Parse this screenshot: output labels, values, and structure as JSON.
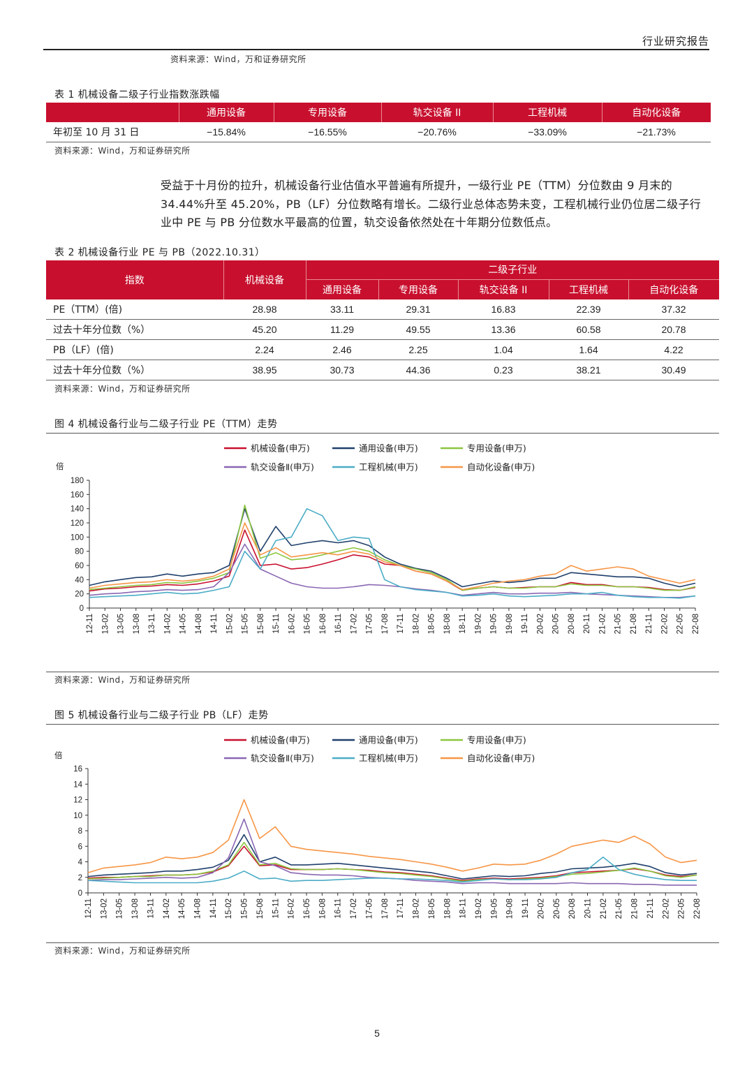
{
  "header": {
    "title": "行业研究报告"
  },
  "source_top": "资料来源：Wind，万和证券研究所",
  "table1": {
    "caption": "表 1    机械设备二级子行业指数涨跌幅",
    "headers": [
      "",
      "通用设备",
      "专用设备",
      "轨交设备 II",
      "工程机械",
      "自动化设备"
    ],
    "rows": [
      [
        "年初至 10 月 31 日",
        "−15.84%",
        "−16.55%",
        "−20.76%",
        "−33.09%",
        "−21.73%"
      ]
    ],
    "source": "资料来源：Wind，万和证券研究所"
  },
  "paragraph": "受益于十月份的拉升，机械设备行业估值水平普遍有所提升，一级行业 PE（TTM）分位数由 9 月末的 34.44%升至 45.20%，PB（LF）分位数略有增长。二级行业总体态势未变，工程机械行业仍位居二级子行业中 PE 与 PB 分位数水平最高的位置，轨交设备依然处在十年期分位数低点。",
  "table2": {
    "caption": "表 2    机械设备行业 PE 与 PB（2022.10.31）",
    "head_index": "指数",
    "head_main": "机械设备",
    "head_group": "二级子行业",
    "sub_headers": [
      "通用设备",
      "专用设备",
      "轨交设备 II",
      "工程机械",
      "自动化设备"
    ],
    "rows": [
      [
        "PE（TTM）(倍)",
        "28.98",
        "33.11",
        "29.31",
        "16.83",
        "22.39",
        "37.32"
      ],
      [
        "过去十年分位数（%）",
        "45.20",
        "11.29",
        "49.55",
        "13.36",
        "60.58",
        "20.78"
      ],
      [
        "PB（LF）(倍)",
        "2.24",
        "2.46",
        "2.25",
        "1.04",
        "1.64",
        "4.22"
      ],
      [
        "过去十年分位数（%）",
        "38.95",
        "30.73",
        "44.36",
        "0.23",
        "38.21",
        "30.49"
      ]
    ],
    "source": "资料来源：Wind，万和证券研究所"
  },
  "chart_data": [
    {
      "type": "line",
      "caption": "图 4    机械设备行业与二级子行业 PE（TTM）走势",
      "ylabel": "倍",
      "ylim": [
        0,
        180
      ],
      "yticks": [
        0,
        20,
        40,
        60,
        80,
        100,
        120,
        140,
        160,
        180
      ],
      "categories": [
        "12-11",
        "13-02",
        "13-05",
        "13-08",
        "13-11",
        "14-02",
        "14-05",
        "14-08",
        "14-11",
        "15-02",
        "15-05",
        "15-08",
        "15-11",
        "16-02",
        "16-05",
        "16-08",
        "16-11",
        "17-02",
        "17-05",
        "17-08",
        "17-11",
        "18-02",
        "18-05",
        "18-08",
        "18-11",
        "19-02",
        "19-05",
        "19-08",
        "19-11",
        "20-02",
        "20-05",
        "20-08",
        "20-11",
        "21-02",
        "21-05",
        "21-08",
        "21-11",
        "22-02",
        "22-05",
        "22-08"
      ],
      "legend_position": "top-center",
      "series": [
        {
          "name": "机械设备(申万)",
          "color": "#c8102e",
          "values": [
            24,
            27,
            28,
            30,
            31,
            33,
            32,
            34,
            38,
            45,
            110,
            60,
            62,
            55,
            57,
            62,
            68,
            75,
            72,
            62,
            60,
            52,
            48,
            38,
            25,
            28,
            30,
            28,
            29,
            30,
            30,
            36,
            33,
            33,
            30,
            30,
            29,
            26,
            25,
            29
          ]
        },
        {
          "name": "通用设备(申万)",
          "color": "#1f3f6b",
          "values": [
            32,
            37,
            40,
            43,
            44,
            48,
            45,
            48,
            50,
            60,
            140,
            80,
            115,
            88,
            92,
            95,
            92,
            95,
            88,
            72,
            62,
            56,
            52,
            42,
            30,
            34,
            38,
            36,
            38,
            42,
            42,
            50,
            48,
            46,
            44,
            44,
            42,
            35,
            30,
            35
          ]
        },
        {
          "name": "专用设备(申万)",
          "color": "#8cc63f",
          "values": [
            26,
            28,
            30,
            32,
            33,
            36,
            35,
            38,
            42,
            50,
            145,
            70,
            78,
            68,
            70,
            75,
            80,
            85,
            80,
            68,
            60,
            55,
            50,
            40,
            25,
            28,
            30,
            28,
            28,
            30,
            30,
            34,
            32,
            32,
            30,
            30,
            28,
            25,
            25,
            30
          ]
        },
        {
          "name": "轨交设备Ⅱ(申万)",
          "color": "#8a67b3",
          "values": [
            18,
            20,
            21,
            23,
            24,
            26,
            25,
            26,
            30,
            50,
            90,
            55,
            45,
            35,
            30,
            28,
            28,
            30,
            33,
            32,
            30,
            27,
            25,
            22,
            18,
            20,
            22,
            20,
            20,
            21,
            21,
            22,
            20,
            19,
            18,
            17,
            16,
            15,
            15,
            17
          ]
        },
        {
          "name": "工程机械(申万)",
          "color": "#4bacc6",
          "values": [
            15,
            16,
            17,
            18,
            20,
            22,
            20,
            21,
            25,
            30,
            80,
            55,
            95,
            100,
            140,
            130,
            95,
            100,
            98,
            40,
            30,
            26,
            24,
            22,
            17,
            18,
            20,
            17,
            16,
            17,
            18,
            20,
            20,
            22,
            18,
            16,
            15,
            15,
            14,
            17
          ]
        },
        {
          "name": "自动化设备(申万)",
          "color": "#f79646",
          "values": [
            28,
            32,
            34,
            36,
            37,
            40,
            38,
            40,
            45,
            55,
            120,
            75,
            85,
            72,
            75,
            78,
            75,
            80,
            76,
            65,
            60,
            52,
            48,
            38,
            26,
            30,
            35,
            38,
            40,
            45,
            48,
            60,
            52,
            55,
            58,
            55,
            45,
            40,
            35,
            40
          ]
        }
      ]
    },
    {
      "type": "line",
      "caption": "图 5    机械设备行业与二级子行业 PB（LF）走势",
      "ylabel": "倍",
      "ylim": [
        0,
        16
      ],
      "yticks": [
        0,
        2,
        4,
        6,
        8,
        10,
        12,
        14,
        16
      ],
      "categories": [
        "12-11",
        "13-02",
        "13-05",
        "13-08",
        "13-11",
        "14-02",
        "14-05",
        "14-08",
        "14-11",
        "15-02",
        "15-05",
        "15-08",
        "15-11",
        "16-02",
        "16-05",
        "16-08",
        "16-11",
        "17-02",
        "17-05",
        "17-08",
        "17-11",
        "18-02",
        "18-05",
        "18-08",
        "18-11",
        "19-02",
        "19-05",
        "19-08",
        "19-11",
        "20-02",
        "20-05",
        "20-08",
        "20-11",
        "21-02",
        "21-05",
        "21-08",
        "21-11",
        "22-02",
        "22-05",
        "22-08"
      ],
      "legend_position": "top-center",
      "series": [
        {
          "name": "机械设备(申万)",
          "color": "#c8102e",
          "values": [
            1.9,
            2.0,
            2.0,
            2.1,
            2.2,
            2.3,
            2.3,
            2.4,
            2.7,
            3.5,
            6.0,
            3.5,
            3.6,
            3.0,
            3.0,
            3.0,
            3.1,
            3.0,
            2.9,
            2.7,
            2.6,
            2.4,
            2.2,
            1.9,
            1.6,
            1.8,
            1.9,
            1.8,
            1.9,
            2.0,
            2.2,
            2.6,
            2.7,
            2.8,
            2.9,
            3.1,
            2.8,
            2.3,
            2.1,
            2.3
          ]
        },
        {
          "name": "通用设备(申万)",
          "color": "#1f3f6b",
          "values": [
            2.1,
            2.3,
            2.4,
            2.5,
            2.6,
            2.8,
            2.8,
            3.0,
            3.3,
            4.2,
            7.5,
            4.0,
            4.6,
            3.6,
            3.6,
            3.7,
            3.8,
            3.6,
            3.4,
            3.2,
            3.0,
            2.8,
            2.6,
            2.2,
            1.8,
            2.0,
            2.2,
            2.1,
            2.2,
            2.5,
            2.7,
            3.1,
            3.2,
            3.3,
            3.5,
            3.8,
            3.4,
            2.6,
            2.3,
            2.5
          ]
        },
        {
          "name": "专用设备(申万)",
          "color": "#8cc63f",
          "values": [
            1.8,
            1.9,
            2.0,
            2.1,
            2.1,
            2.3,
            2.3,
            2.4,
            2.8,
            3.6,
            6.5,
            3.6,
            3.8,
            3.1,
            3.0,
            3.0,
            3.1,
            3.0,
            2.8,
            2.6,
            2.5,
            2.3,
            2.1,
            1.8,
            1.5,
            1.7,
            1.8,
            1.7,
            1.8,
            1.9,
            2.1,
            2.4,
            2.5,
            2.7,
            2.9,
            3.2,
            2.8,
            2.2,
            2.0,
            2.3
          ]
        },
        {
          "name": "轨交设备Ⅱ(申万)",
          "color": "#8a67b3",
          "values": [
            1.6,
            1.7,
            1.7,
            1.8,
            1.9,
            2.0,
            1.9,
            2.0,
            2.6,
            4.5,
            9.5,
            4.0,
            3.5,
            2.6,
            2.4,
            2.3,
            2.3,
            2.2,
            2.0,
            1.9,
            1.8,
            1.6,
            1.5,
            1.4,
            1.2,
            1.3,
            1.3,
            1.2,
            1.2,
            1.2,
            1.2,
            1.3,
            1.2,
            1.2,
            1.2,
            1.1,
            1.1,
            1.0,
            1.0,
            1.0
          ]
        },
        {
          "name": "工程机械(申万)",
          "color": "#4bacc6",
          "values": [
            1.6,
            1.5,
            1.4,
            1.3,
            1.3,
            1.3,
            1.3,
            1.3,
            1.5,
            1.9,
            2.8,
            1.8,
            1.9,
            1.5,
            1.6,
            1.6,
            1.7,
            1.8,
            1.9,
            1.9,
            1.8,
            1.8,
            1.7,
            1.6,
            1.4,
            1.6,
            1.8,
            1.7,
            1.7,
            1.8,
            2.0,
            2.6,
            3.0,
            4.6,
            3.0,
            2.4,
            2.0,
            1.7,
            1.6,
            1.6
          ]
        },
        {
          "name": "自动化设备(申万)",
          "color": "#f79646",
          "values": [
            2.6,
            3.2,
            3.4,
            3.6,
            3.9,
            4.6,
            4.4,
            4.6,
            5.2,
            6.8,
            12.0,
            7.0,
            8.5,
            6.0,
            5.6,
            5.4,
            5.2,
            5.0,
            4.7,
            4.5,
            4.3,
            4.0,
            3.7,
            3.3,
            2.8,
            3.2,
            3.7,
            3.6,
            3.7,
            4.2,
            5.0,
            6.0,
            6.4,
            6.8,
            6.5,
            7.3,
            6.3,
            4.6,
            3.9,
            4.2
          ]
        }
      ]
    }
  ],
  "fig4_source": "资料来源：Wind，万和证券研究所",
  "fig5_source": "资料来源：Wind，万和证券研究所",
  "page_number": "5"
}
